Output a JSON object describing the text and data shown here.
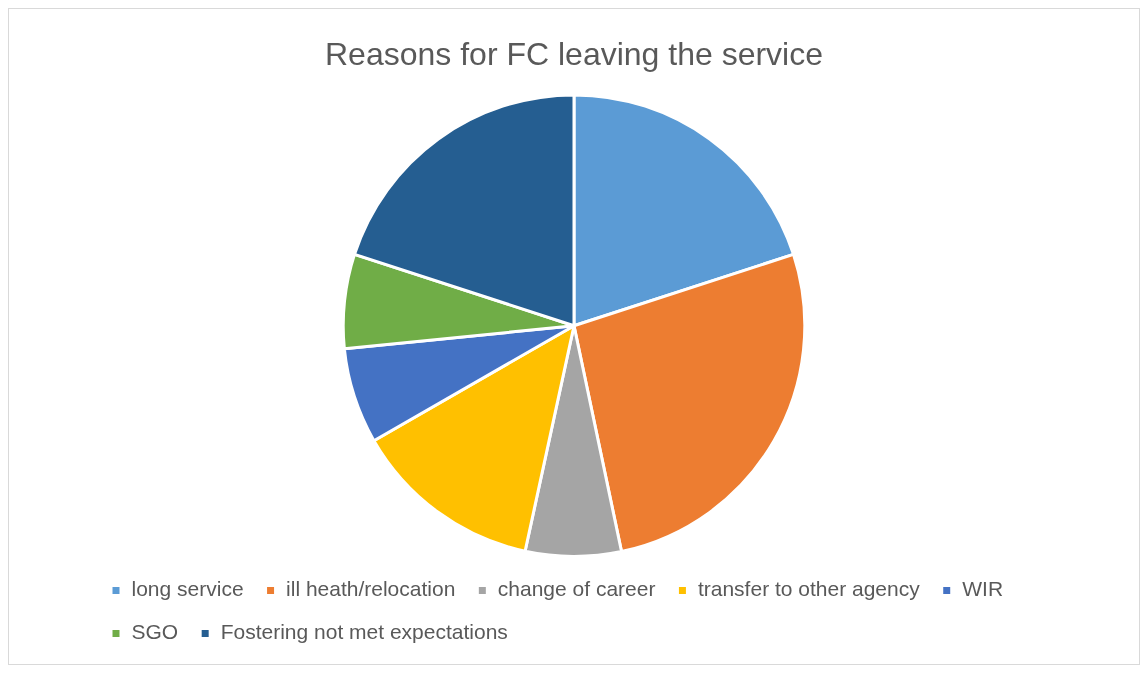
{
  "chart_data": {
    "type": "pie",
    "title": "Reasons for FC leaving the service",
    "categories": [
      "long service",
      "ill heath/relocation",
      "change of career",
      "transfer to other agency",
      "WIR",
      "SGO",
      "Fostering not met expectations"
    ],
    "values": [
      20,
      26.7,
      6.7,
      13.3,
      6.7,
      6.6,
      20
    ],
    "colors": [
      "#5b9bd5",
      "#ed7d31",
      "#a5a5a5",
      "#ffc000",
      "#4472c4",
      "#70ad47",
      "#255e91"
    ],
    "legend": "bottom"
  }
}
